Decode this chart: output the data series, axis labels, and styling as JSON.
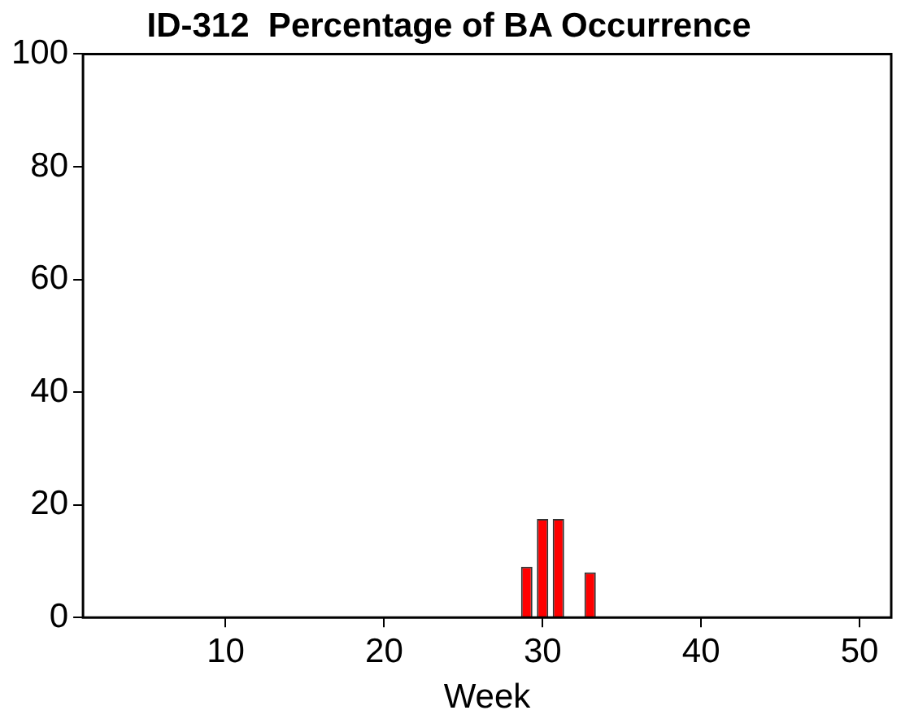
{
  "chart_data": {
    "type": "bar",
    "title": "ID-312  Percentage of BA Occurrence",
    "xlabel": "Week",
    "x": [
      29,
      30,
      31,
      33
    ],
    "values": [
      9,
      17.5,
      17.5,
      8
    ],
    "color": "#ff0000",
    "xlim": [
      1,
      52
    ],
    "xticks": [
      10,
      20,
      30,
      40,
      50
    ],
    "ylim": [
      0,
      100
    ],
    "yticks": [
      0,
      20,
      40,
      60,
      80,
      100
    ],
    "grid": false,
    "legend": false
  }
}
